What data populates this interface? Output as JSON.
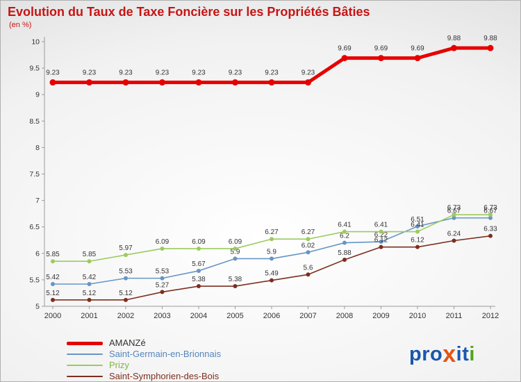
{
  "title": "Evolution du Taux de Taxe Foncière sur les Propriétés Bâties",
  "subtitle": "(en %)",
  "chart_data": {
    "type": "line",
    "x": [
      2000,
      2001,
      2002,
      2003,
      2004,
      2005,
      2006,
      2007,
      2008,
      2009,
      2010,
      2011,
      2012
    ],
    "xlabel": "",
    "ylabel": "en %",
    "ylim": [
      5,
      10
    ],
    "ytick_step": 0.5,
    "grid": false,
    "legend_position": "bottom-left",
    "series": [
      {
        "name": "AMANZé",
        "color": "#e60000",
        "legend_color": "#333333",
        "line_width": 5,
        "dot_radius": 4.5,
        "label_dy": 11,
        "values": [
          9.23,
          9.23,
          9.23,
          9.23,
          9.23,
          9.23,
          9.23,
          9.23,
          9.69,
          9.69,
          9.69,
          9.88,
          9.88
        ]
      },
      {
        "name": "Saint-Germain-en-Brionnais",
        "color": "#6795c5",
        "legend_color": "#5585bb",
        "line_width": 1.6,
        "dot_radius": 3,
        "label_dy": 7,
        "values": [
          5.42,
          5.42,
          5.53,
          5.53,
          5.67,
          5.9,
          5.9,
          6.02,
          6.2,
          6.22,
          6.51,
          6.67,
          6.67
        ]
      },
      {
        "name": "Prizy",
        "color": "#9ccb5e",
        "legend_color": "#82b53e",
        "line_width": 1.6,
        "dot_radius": 3,
        "label_dy": 7,
        "values": [
          5.85,
          5.85,
          5.97,
          6.09,
          6.09,
          6.09,
          6.27,
          6.27,
          6.41,
          6.41,
          6.41,
          6.73,
          6.73
        ]
      },
      {
        "name": "Saint-Symphorien-des-Bois",
        "color": "#7d2e1e",
        "legend_color": "#7d2e1e",
        "line_width": 1.6,
        "dot_radius": 3,
        "label_dy": 7,
        "values": [
          5.12,
          5.12,
          5.12,
          5.27,
          5.38,
          5.38,
          5.49,
          5.6,
          5.88,
          6.12,
          6.12,
          6.24,
          6.33
        ]
      }
    ]
  },
  "logo": {
    "letters": [
      {
        "ch": "p",
        "color": "#1a57ad"
      },
      {
        "ch": "r",
        "color": "#1a57ad"
      },
      {
        "ch": "o",
        "color": "#1a57ad"
      },
      {
        "ch": "x",
        "color": "#e35414"
      },
      {
        "ch": "i",
        "color": "#1a57ad"
      },
      {
        "ch": "t",
        "color": "#1a57ad"
      },
      {
        "ch": "i",
        "color": "#53a318"
      }
    ]
  }
}
